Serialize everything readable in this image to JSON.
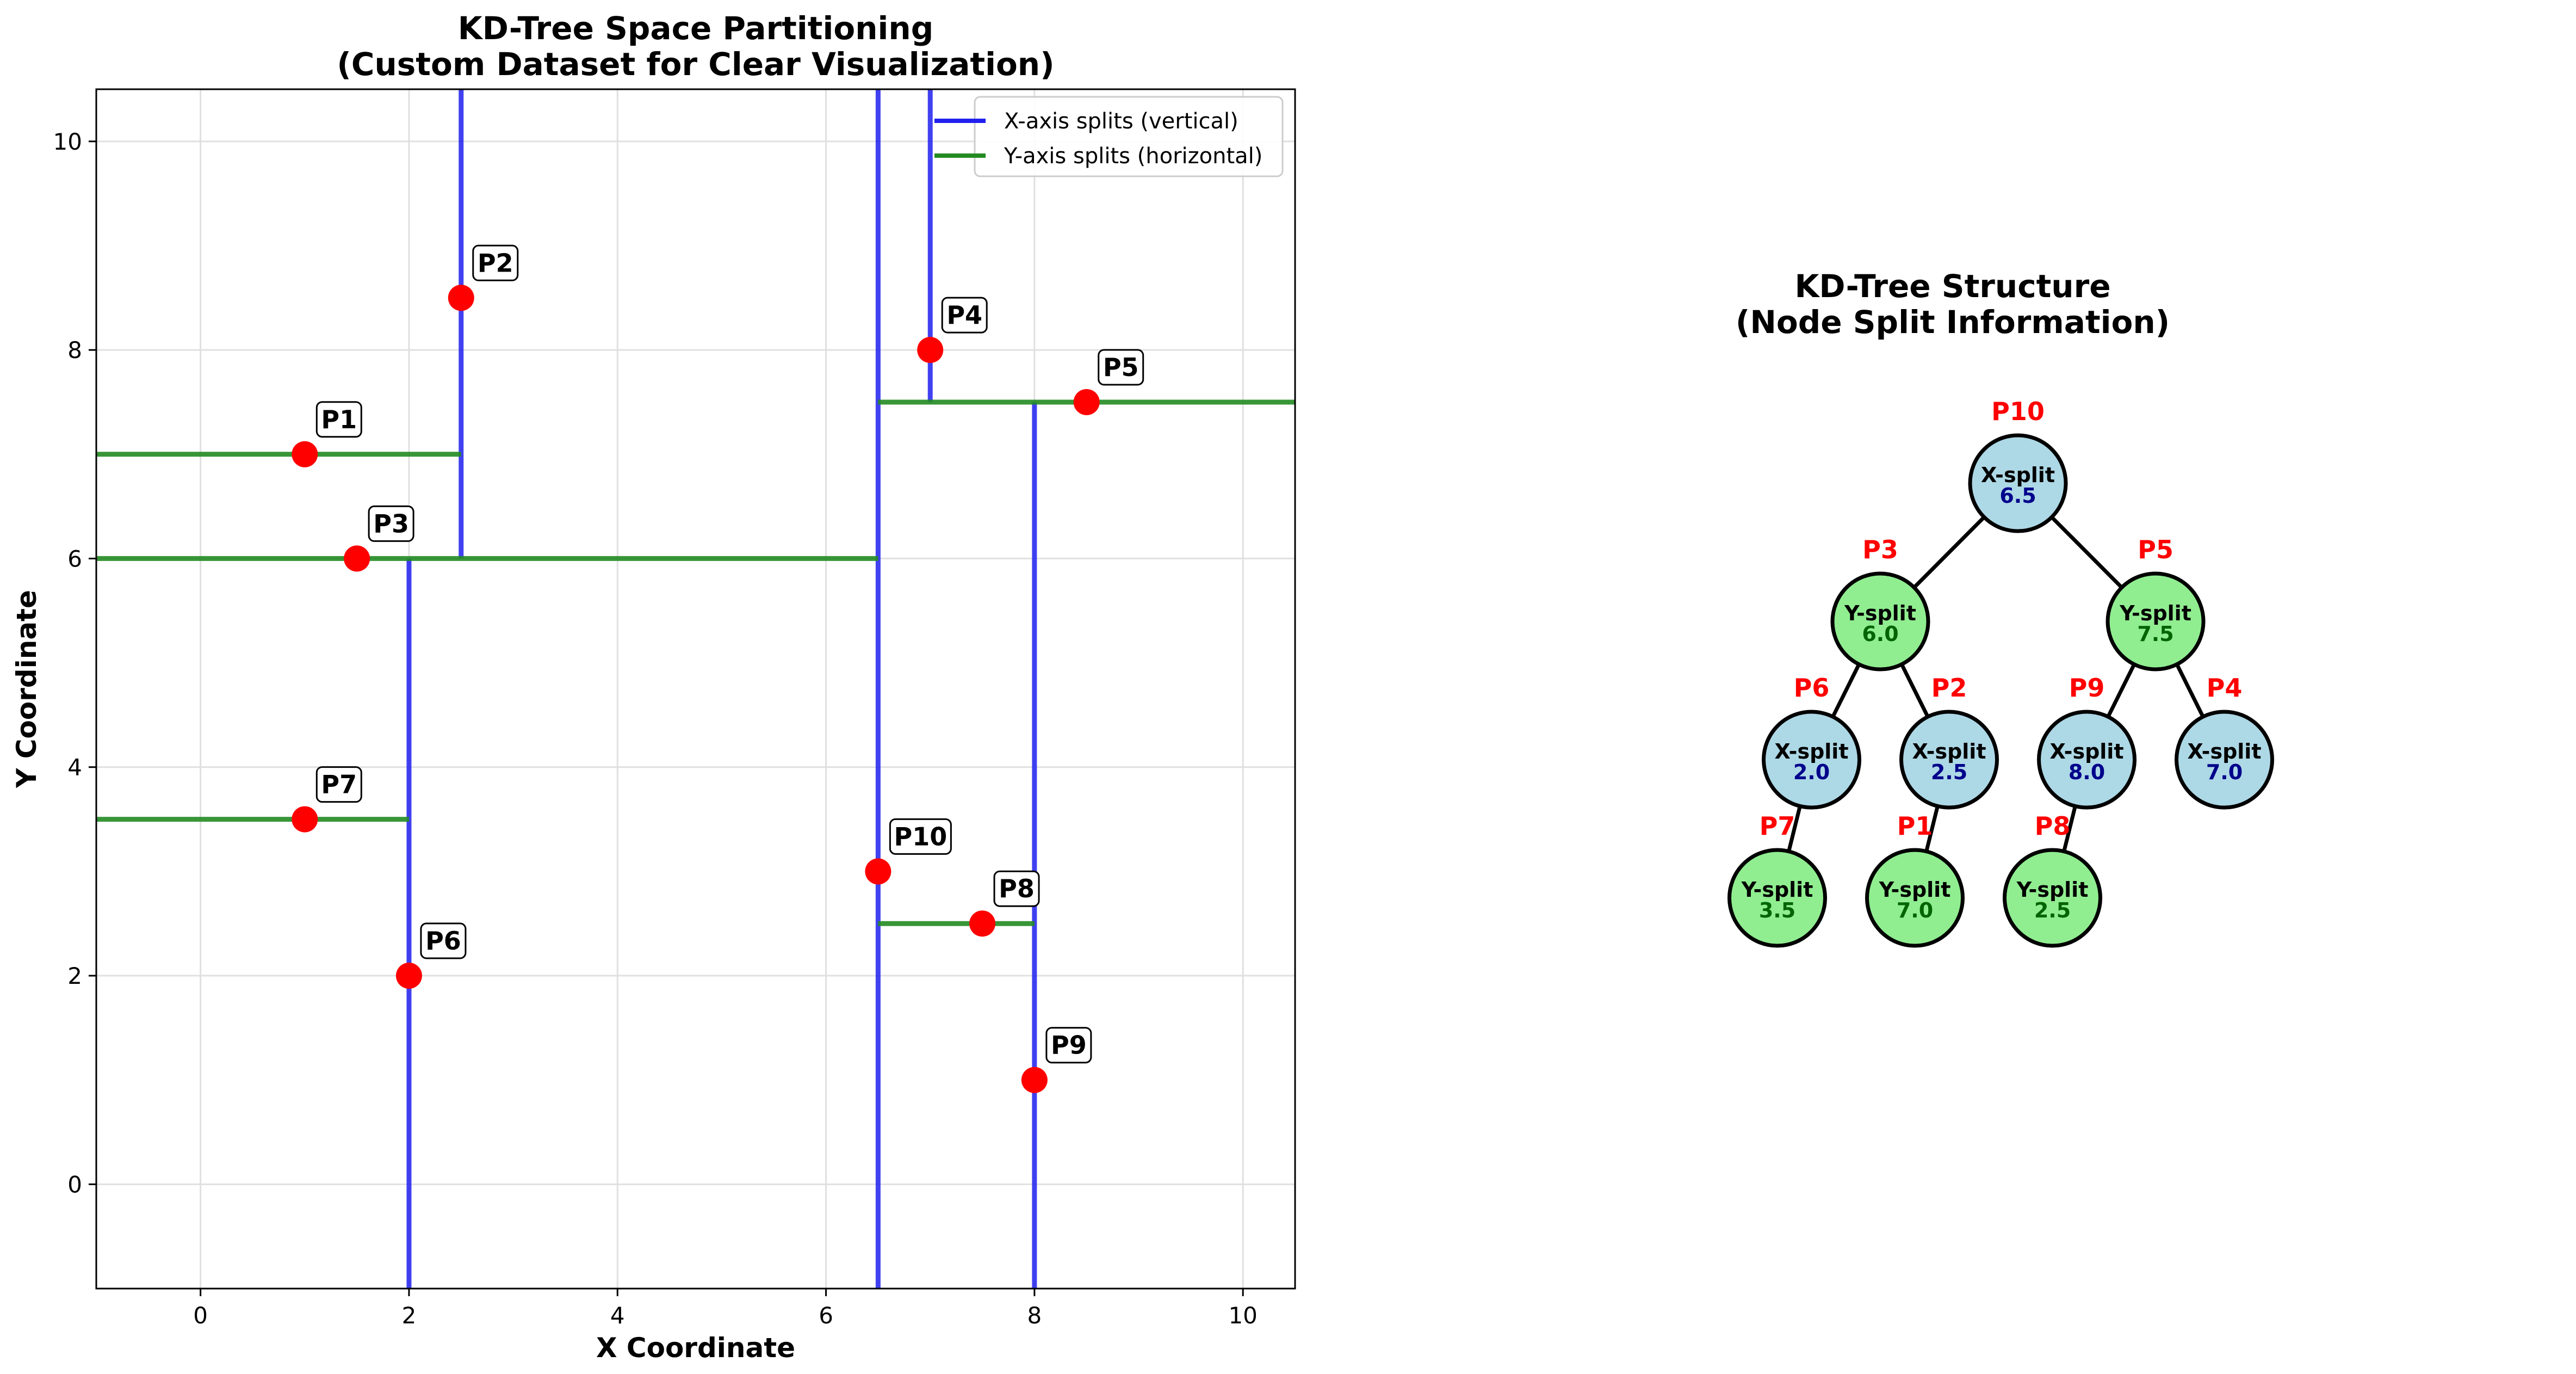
{
  "chart_data": [
    {
      "type": "scatter",
      "title": [
        "KD-Tree Space Partitioning",
        "(Custom Dataset for Clear Visualization)"
      ],
      "xlabel": "X Coordinate",
      "ylabel": "Y Coordinate",
      "xlim": [
        -1,
        10.5
      ],
      "ylim": [
        -1,
        10.5
      ],
      "xticks": [
        0,
        2,
        4,
        6,
        8,
        10
      ],
      "yticks": [
        0,
        2,
        4,
        6,
        8,
        10
      ],
      "grid": true,
      "legend_position": "top-right",
      "legend": [
        {
          "label": "X-axis splits (vertical)",
          "color": "#2020ee"
        },
        {
          "label": "Y-axis splits (horizontal)",
          "color": "#228B22"
        }
      ],
      "points": [
        {
          "label": "P1",
          "x": 1.0,
          "y": 7.0
        },
        {
          "label": "P2",
          "x": 2.5,
          "y": 8.5
        },
        {
          "label": "P3",
          "x": 1.5,
          "y": 6.0
        },
        {
          "label": "P4",
          "x": 7.0,
          "y": 8.0
        },
        {
          "label": "P5",
          "x": 8.5,
          "y": 7.5
        },
        {
          "label": "P6",
          "x": 2.0,
          "y": 2.0
        },
        {
          "label": "P7",
          "x": 1.0,
          "y": 3.5
        },
        {
          "label": "P8",
          "x": 7.5,
          "y": 2.5
        },
        {
          "label": "P9",
          "x": 8.0,
          "y": 1.0
        },
        {
          "label": "P10",
          "x": 6.5,
          "y": 3.0
        }
      ],
      "x_splits": [
        {
          "x": 6.5,
          "y_range": [
            -1,
            10.5
          ]
        },
        {
          "x": 2.0,
          "y_range": [
            -1,
            6.0
          ]
        },
        {
          "x": 2.5,
          "y_range": [
            6.0,
            10.5
          ]
        },
        {
          "x": 8.0,
          "y_range": [
            -1,
            7.5
          ]
        },
        {
          "x": 7.0,
          "y_range": [
            7.5,
            10.5
          ]
        }
      ],
      "y_splits": [
        {
          "y": 6.0,
          "x_range": [
            -1,
            6.5
          ]
        },
        {
          "y": 7.5,
          "x_range": [
            6.5,
            10.5
          ]
        },
        {
          "y": 3.5,
          "x_range": [
            -1,
            2.0
          ]
        },
        {
          "y": 7.0,
          "x_range": [
            -1,
            2.5
          ]
        },
        {
          "y": 2.5,
          "x_range": [
            6.5,
            8.0
          ]
        }
      ],
      "colors": {
        "point": "#ff0000",
        "x_split": "#2020ee",
        "y_split": "#228B22",
        "grid": "#e0e0e0"
      }
    },
    {
      "type": "tree",
      "title": [
        "KD-Tree Structure",
        "(Node Split Information)"
      ],
      "nodes": [
        {
          "id": "P10",
          "axis": "X-split",
          "value": "6.5",
          "depth": 0,
          "slot": 0
        },
        {
          "id": "P3",
          "axis": "Y-split",
          "value": "6.0",
          "depth": 1,
          "slot": 0
        },
        {
          "id": "P5",
          "axis": "Y-split",
          "value": "7.5",
          "depth": 1,
          "slot": 1
        },
        {
          "id": "P6",
          "axis": "X-split",
          "value": "2.0",
          "depth": 2,
          "slot": 0
        },
        {
          "id": "P2",
          "axis": "X-split",
          "value": "2.5",
          "depth": 2,
          "slot": 1
        },
        {
          "id": "P9",
          "axis": "X-split",
          "value": "8.0",
          "depth": 2,
          "slot": 2
        },
        {
          "id": "P4",
          "axis": "X-split",
          "value": "7.0",
          "depth": 2,
          "slot": 3
        },
        {
          "id": "P7",
          "axis": "Y-split",
          "value": "3.5",
          "depth": 3,
          "slot": 0
        },
        {
          "id": "P1",
          "axis": "Y-split",
          "value": "7.0",
          "depth": 3,
          "slot": 1
        },
        {
          "id": "P8",
          "axis": "Y-split",
          "value": "2.5",
          "depth": 3,
          "slot": 2
        }
      ],
      "edges": [
        [
          "P10",
          "P3"
        ],
        [
          "P10",
          "P5"
        ],
        [
          "P3",
          "P6"
        ],
        [
          "P3",
          "P2"
        ],
        [
          "P5",
          "P9"
        ],
        [
          "P5",
          "P4"
        ],
        [
          "P6",
          "P7"
        ],
        [
          "P2",
          "P1"
        ],
        [
          "P9",
          "P8"
        ]
      ],
      "colors": {
        "x_node_fill": "#add8e6",
        "x_node_text": "#00008b",
        "y_node_fill": "#90ee90",
        "y_node_text": "#006400",
        "node_label": "#ff0000",
        "edge": "#000000"
      }
    }
  ]
}
